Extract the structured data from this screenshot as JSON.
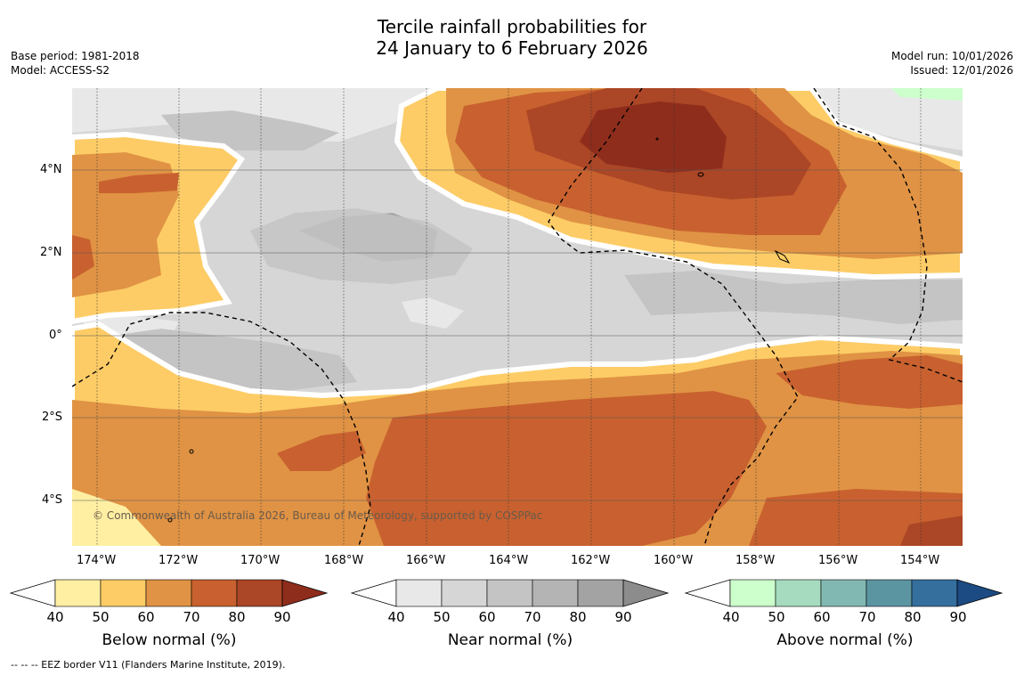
{
  "title_line1": "Tercile rainfall probabilities for",
  "title_line2": "24 January to 6 February 2026",
  "base_period": "Base period: 1981-2018",
  "model": "Model: ACCESS-S2",
  "model_run": "Model run: 10/01/2026",
  "issued": "Issued: 12/01/2026",
  "map": {
    "lat_labels": [
      "4°N",
      "2°N",
      "0°",
      "2°S",
      "4°S"
    ],
    "lon_labels": [
      "174°W",
      "172°W",
      "170°W",
      "168°W",
      "166°W",
      "164°W",
      "162°W",
      "160°W",
      "158°W",
      "156°W",
      "154°W"
    ],
    "copyright": "© Commonwealth of Australia 2026, Bureau of Meteorology, supported by COSPPac"
  },
  "colorbars": {
    "ticks": [
      "40",
      "50",
      "60",
      "70",
      "80",
      "90"
    ],
    "below": {
      "label": "Below normal (%)",
      "colors": [
        "#ffefa3",
        "#fdcc66",
        "#e09344",
        "#c8612f",
        "#ab4626",
        "#8e2d1c"
      ]
    },
    "near": {
      "label": "Near normal (%)",
      "colors": [
        "#e8e8e8",
        "#d6d6d6",
        "#c4c4c4",
        "#b4b4b4",
        "#a3a3a3",
        "#8c8c8c"
      ]
    },
    "above": {
      "label": "Above normal (%)",
      "colors": [
        "#ccffcc",
        "#a6dbbf",
        "#82b8b2",
        "#5c95a2",
        "#356f9e",
        "#1b4b82"
      ]
    }
  },
  "footer": "--  --  -- EEZ border V11 (Flanders Marine Institute, 2019)."
}
